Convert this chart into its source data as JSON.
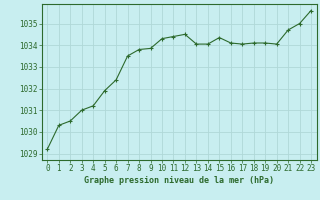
{
  "x": [
    0,
    1,
    2,
    3,
    4,
    5,
    6,
    7,
    8,
    9,
    10,
    11,
    12,
    13,
    14,
    15,
    16,
    17,
    18,
    19,
    20,
    21,
    22,
    23
  ],
  "y": [
    1029.2,
    1030.3,
    1030.5,
    1031.0,
    1031.2,
    1031.9,
    1032.4,
    1033.5,
    1033.8,
    1033.85,
    1034.3,
    1034.4,
    1034.5,
    1034.05,
    1034.05,
    1034.35,
    1034.1,
    1034.05,
    1034.1,
    1034.1,
    1034.05,
    1034.7,
    1035.0,
    1035.6
  ],
  "line_color": "#2d6a2d",
  "marker": "P",
  "marker_size": 2.5,
  "bg_color": "#c8eef0",
  "grid_color": "#b0d8d8",
  "axis_color": "#2d6a2d",
  "label_color": "#2d6a2d",
  "title": "Graphe pression niveau de la mer (hPa)",
  "xlim": [
    -0.5,
    23.5
  ],
  "ylim": [
    1028.7,
    1035.9
  ],
  "yticks": [
    1029,
    1030,
    1031,
    1032,
    1033,
    1034,
    1035
  ],
  "xticks": [
    0,
    1,
    2,
    3,
    4,
    5,
    6,
    7,
    8,
    9,
    10,
    11,
    12,
    13,
    14,
    15,
    16,
    17,
    18,
    19,
    20,
    21,
    22,
    23
  ],
  "tick_fontsize": 5.5,
  "title_fontsize": 6.0
}
